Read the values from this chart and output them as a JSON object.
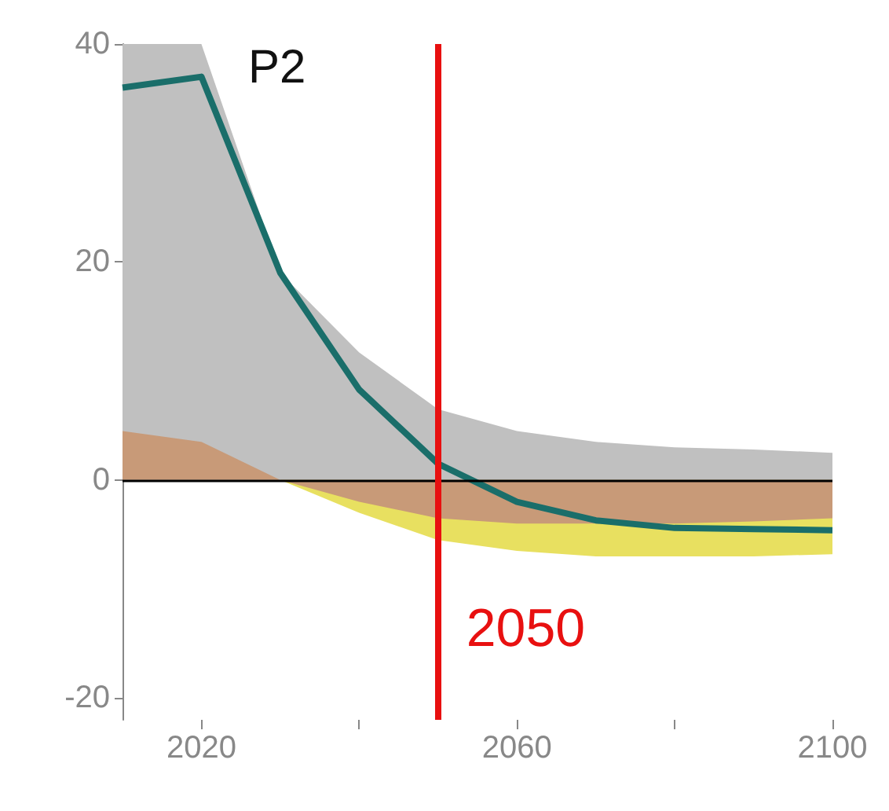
{
  "chart_data": {
    "type": "line",
    "title": "P2",
    "x": [
      2010,
      2020,
      2030,
      2040,
      2050,
      2060,
      2070,
      2080,
      2090,
      2100
    ],
    "series": [
      {
        "type": "area",
        "color": "#c0c0c0",
        "values": [
          40,
          40,
          19,
          11.7,
          6.5,
          4.5,
          3.5,
          3,
          2.8,
          2.5
        ]
      },
      {
        "type": "area",
        "color": "#e8e060",
        "values": [
          0,
          0,
          0,
          -3,
          -5.5,
          -6.5,
          -7,
          -7,
          -7,
          -6.8
        ]
      },
      {
        "type": "area",
        "color": "#c89a78",
        "values": [
          4.5,
          3.5,
          0,
          -2,
          -3.5,
          -4,
          -4,
          -4,
          -3.8,
          -3.5
        ]
      },
      {
        "color": "#1a6e6a",
        "values": [
          36,
          37,
          19,
          8.3,
          1.5,
          -2,
          -3.7,
          -4.4,
          -4.5,
          -4.6
        ]
      }
    ],
    "xlim": [
      2010,
      2100
    ],
    "xticks": [
      2020,
      {
        "value": 2040,
        "label": null
      },
      2060,
      {
        "value": 2080,
        "label": null
      },
      2100
    ],
    "ylim": [
      -22,
      40
    ],
    "yticks": [
      -20,
      0,
      20,
      40
    ],
    "grid": false,
    "marker": "none",
    "ref_lines": [
      {
        "axis": "y",
        "value": 0,
        "label": null,
        "color": "#000000"
      },
      {
        "axis": "x",
        "value": 2050,
        "label": "2050",
        "color": "#e81010"
      }
    ]
  }
}
